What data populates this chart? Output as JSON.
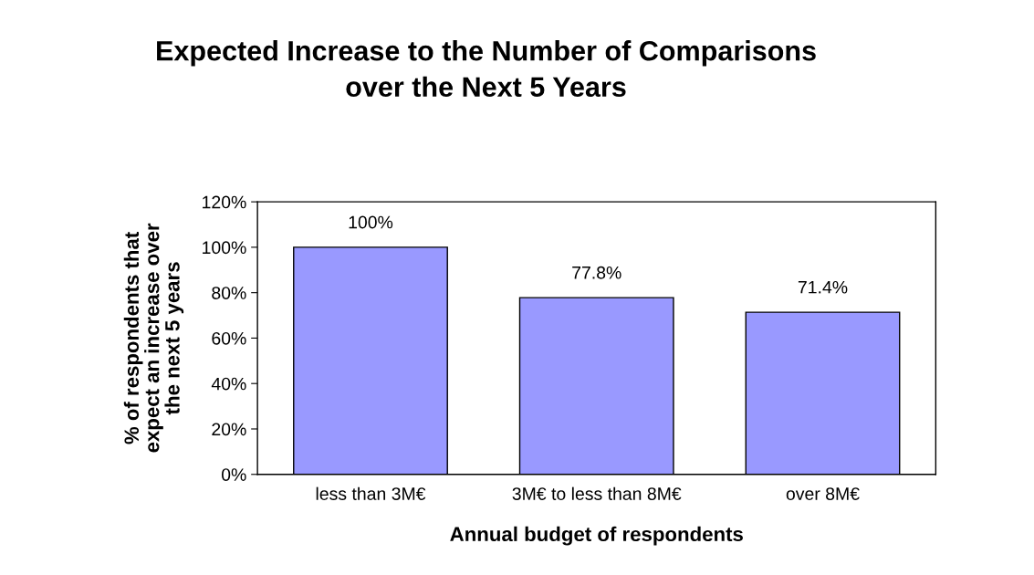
{
  "chart_data": {
    "type": "bar",
    "title": "Expected Increase to the Number of Comparisons\nover the Next 5 Years",
    "xlabel": "Annual budget of respondents",
    "ylabel": "% of respondents that\nexpect an increase over\nthe next 5 years",
    "categories": [
      "less than 3M€",
      "3M€ to less than 8M€",
      "over 8M€"
    ],
    "values": [
      100,
      77.8,
      71.4
    ],
    "value_labels": [
      "100%",
      "77.8%",
      "71.4%"
    ],
    "color": "#9999ff",
    "ylim": [
      0,
      120
    ],
    "yticks": [
      {
        "value": 0,
        "label": "0%"
      },
      {
        "value": 20,
        "label": "20%"
      },
      {
        "value": 40,
        "label": "40%"
      },
      {
        "value": 60,
        "label": "60%"
      },
      {
        "value": 80,
        "label": "80%"
      },
      {
        "value": 100,
        "label": "100%"
      },
      {
        "value": 120,
        "label": "120%"
      }
    ],
    "grid": false
  }
}
